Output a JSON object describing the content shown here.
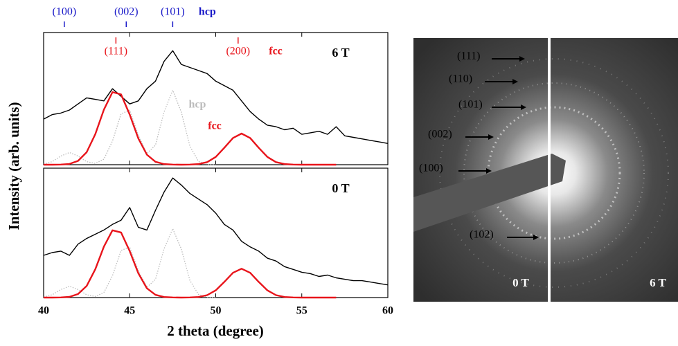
{
  "figure": {
    "ylabel": "Intensity (arb. units)",
    "xlabel": "2 theta (degree)",
    "phases": [
      {
        "name": "hcp",
        "color": "#1818c8",
        "peaks": [
          {
            "label": "(100)",
            "x": 41.2
          },
          {
            "label": "(002)",
            "x": 44.8
          },
          {
            "label": "(101)",
            "x": 47.5
          }
        ]
      },
      {
        "name": "fcc",
        "color": "#e8141b",
        "peaks": [
          {
            "label": "(111)",
            "x": 44.2
          },
          {
            "label": "(200)",
            "x": 51.3
          }
        ]
      }
    ]
  },
  "chart_data": [
    {
      "type": "line",
      "label": "6 T",
      "xlim": [
        40,
        60
      ],
      "xticks": [
        40,
        45,
        50,
        55,
        60
      ],
      "ylim": [
        0,
        87
      ],
      "series": [
        {
          "color": "#bbbbbb",
          "style": "dotted",
          "name": "hcp",
          "x": [
            40,
            40.5,
            41,
            41.5,
            42,
            42.5,
            43,
            43.5,
            44,
            44.5,
            45,
            45.5,
            46,
            46.5,
            47,
            47.5,
            48,
            48.5,
            49,
            49.5,
            50
          ],
          "values": [
            0.4,
            2.0,
            5.7,
            8,
            5.7,
            2.0,
            0.8,
            3.6,
            15.6,
            33.5,
            35.9,
            19.4,
            7.3,
            12.9,
            34.7,
            49,
            34.6,
            12.2,
            2.2,
            0.2,
            0
          ]
        },
        {
          "color": "#000000",
          "style": "solid",
          "x": [
            40,
            40.5,
            41,
            41.5,
            42,
            42.5,
            43,
            43.5,
            44,
            44.5,
            45,
            45.5,
            46,
            46.5,
            47,
            47.5,
            48,
            48.5,
            49,
            49.5,
            50,
            50.5,
            51,
            51.5,
            52,
            52.5,
            53,
            53.5,
            54,
            54.5,
            55,
            55.5,
            56,
            56.5,
            57,
            57.5,
            58,
            58.5,
            59,
            59.5,
            60
          ],
          "values": [
            30,
            33,
            34,
            36,
            40,
            44,
            43,
            42,
            50,
            45,
            40,
            42,
            50,
            55,
            68,
            75,
            66,
            64,
            62,
            60,
            55,
            52,
            49,
            42,
            35,
            30,
            26,
            25,
            23,
            24,
            20,
            21,
            22,
            20,
            25,
            19,
            18,
            17,
            16,
            15,
            14
          ]
        },
        {
          "color": "#e8141b",
          "style": "solid",
          "name": "fcc",
          "x": [
            40,
            40.5,
            41,
            41.5,
            42,
            42.5,
            43,
            43.5,
            44,
            44.5,
            45,
            45.5,
            46,
            46.5,
            47,
            47.5,
            48,
            48.5,
            49,
            49.5,
            50,
            50.5,
            51,
            51.5,
            52,
            52.5,
            53,
            53.5,
            54,
            54.5,
            55,
            55.5,
            56,
            56.5,
            57
          ],
          "values": [
            0,
            0,
            0.1,
            0.5,
            2.5,
            8.2,
            20.1,
            36.2,
            47.8,
            46.3,
            33.0,
            17.3,
            6.6,
            1.9,
            0.4,
            0.1,
            0,
            0.1,
            0.4,
            1.7,
            5.1,
            11.1,
            17.6,
            20.5,
            17.6,
            11.1,
            5.1,
            1.7,
            0.4,
            0.1,
            0,
            0,
            0,
            0,
            0
          ]
        }
      ]
    },
    {
      "type": "line",
      "label": "0 T",
      "xlim": [
        40,
        60
      ],
      "xticks": [
        40,
        45,
        50,
        55,
        60
      ],
      "ylim": [
        0,
        92
      ],
      "series": [
        {
          "color": "#bbbbbb",
          "style": "dotted",
          "x": [
            40,
            40.5,
            41,
            41.5,
            42,
            42.5,
            43,
            43.5,
            44,
            44.5,
            45,
            45.5,
            46,
            46.5,
            47,
            47.5,
            48,
            48.5,
            49,
            49.5,
            50
          ],
          "values": [
            0.4,
            2.0,
            5.7,
            8,
            5.7,
            2.0,
            0.8,
            3.6,
            15.6,
            33.5,
            35.9,
            19.4,
            7.3,
            12.9,
            34.7,
            49,
            34.6,
            12.2,
            2.2,
            0.2,
            0
          ]
        },
        {
          "color": "#000000",
          "style": "solid",
          "x": [
            40,
            40.5,
            41,
            41.5,
            42,
            42.5,
            43,
            43.5,
            44,
            44.5,
            45,
            45.5,
            46,
            46.5,
            47,
            47.5,
            48,
            48.5,
            49,
            49.5,
            50,
            50.5,
            51,
            51.5,
            52,
            52.5,
            53,
            53.5,
            54,
            54.5,
            55,
            55.5,
            56,
            56.5,
            57,
            57.5,
            58,
            58.5,
            59,
            59.5,
            60
          ],
          "values": [
            30,
            32,
            33,
            30,
            38,
            42,
            45,
            48,
            52,
            55,
            64,
            50,
            48,
            62,
            75,
            85,
            80,
            74,
            70,
            66,
            60,
            52,
            48,
            40,
            36,
            33,
            28,
            26,
            22,
            20,
            18,
            17,
            15,
            16,
            14,
            13,
            12,
            12,
            11,
            10,
            9
          ]
        },
        {
          "color": "#e8141b",
          "style": "solid",
          "x": [
            40,
            40.5,
            41,
            41.5,
            42,
            42.5,
            43,
            43.5,
            44,
            44.5,
            45,
            45.5,
            46,
            46.5,
            47,
            47.5,
            48,
            48.5,
            49,
            49.5,
            50,
            50.5,
            51,
            51.5,
            52,
            52.5,
            53,
            53.5,
            54,
            54.5,
            55,
            55.5,
            56,
            56.5,
            57
          ],
          "values": [
            0,
            0,
            0.1,
            0.5,
            2.5,
            8.2,
            20.1,
            36.2,
            47.8,
            46.3,
            33.0,
            17.3,
            6.6,
            1.9,
            0.4,
            0.1,
            0,
            0.1,
            0.4,
            1.7,
            5.1,
            11.1,
            17.6,
            20.5,
            17.6,
            11.1,
            5.1,
            1.7,
            0.4,
            0.1,
            0,
            0,
            0,
            0,
            0
          ]
        }
      ]
    }
  ],
  "diffraction": {
    "rings": [
      "(111)",
      "(110)",
      "(101)",
      "(002)",
      "(100)",
      "(102)"
    ],
    "panels": [
      "0 T",
      "6 T"
    ]
  }
}
